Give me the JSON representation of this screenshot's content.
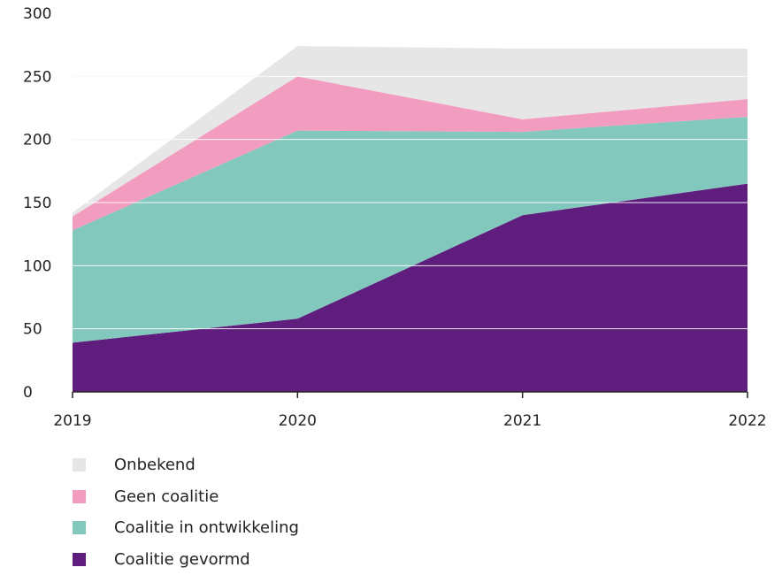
{
  "chart_data": {
    "type": "area",
    "stacked": true,
    "x": [
      "2019",
      "2020",
      "2021",
      "2022"
    ],
    "ylim": [
      0,
      300
    ],
    "yticks": [
      "0",
      "50",
      "100",
      "150",
      "200",
      "250",
      "300"
    ],
    "grid": true,
    "legend_position": "bottom-left",
    "series": [
      {
        "name": "Coalitie gevormd",
        "values": [
          39,
          58,
          140,
          165
        ],
        "color": "#5f1d7d"
      },
      {
        "name": "Coalitie in ontwikkeling",
        "values": [
          89,
          149,
          66,
          53
        ],
        "color": "#82c8bc"
      },
      {
        "name": "Geen coalitie",
        "values": [
          11,
          43,
          10,
          14
        ],
        "color": "#f29cc0"
      },
      {
        "name": "Onbekend",
        "values": [
          3,
          24,
          56,
          40
        ],
        "color": "#e6e6e6"
      }
    ],
    "legend_order": [
      "Onbekend",
      "Geen coalitie",
      "Coalitie in ontwikkeling",
      "Coalitie gevormd"
    ]
  }
}
